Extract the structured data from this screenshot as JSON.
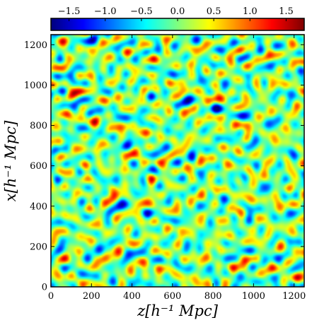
{
  "chart_data": {
    "type": "heatmap",
    "colormap": "jet",
    "xlabel": "z[h⁻¹ Mpc]",
    "ylabel": "x[h⁻¹ Mpc]",
    "xlim": [
      0,
      1250
    ],
    "ylim": [
      0,
      1250
    ],
    "xticks": [
      "0",
      "200",
      "400",
      "600",
      "800",
      "1000",
      "1200"
    ],
    "yticks": [
      "0",
      "200",
      "400",
      "600",
      "800",
      "1000",
      "1200"
    ],
    "colorbar": {
      "location": "top",
      "range": [
        -1.75,
        1.75
      ],
      "ticks": [
        "−1.5",
        "−1.0",
        "−0.5",
        "0.0",
        "0.5",
        "1.0",
        "1.5"
      ]
    }
  }
}
